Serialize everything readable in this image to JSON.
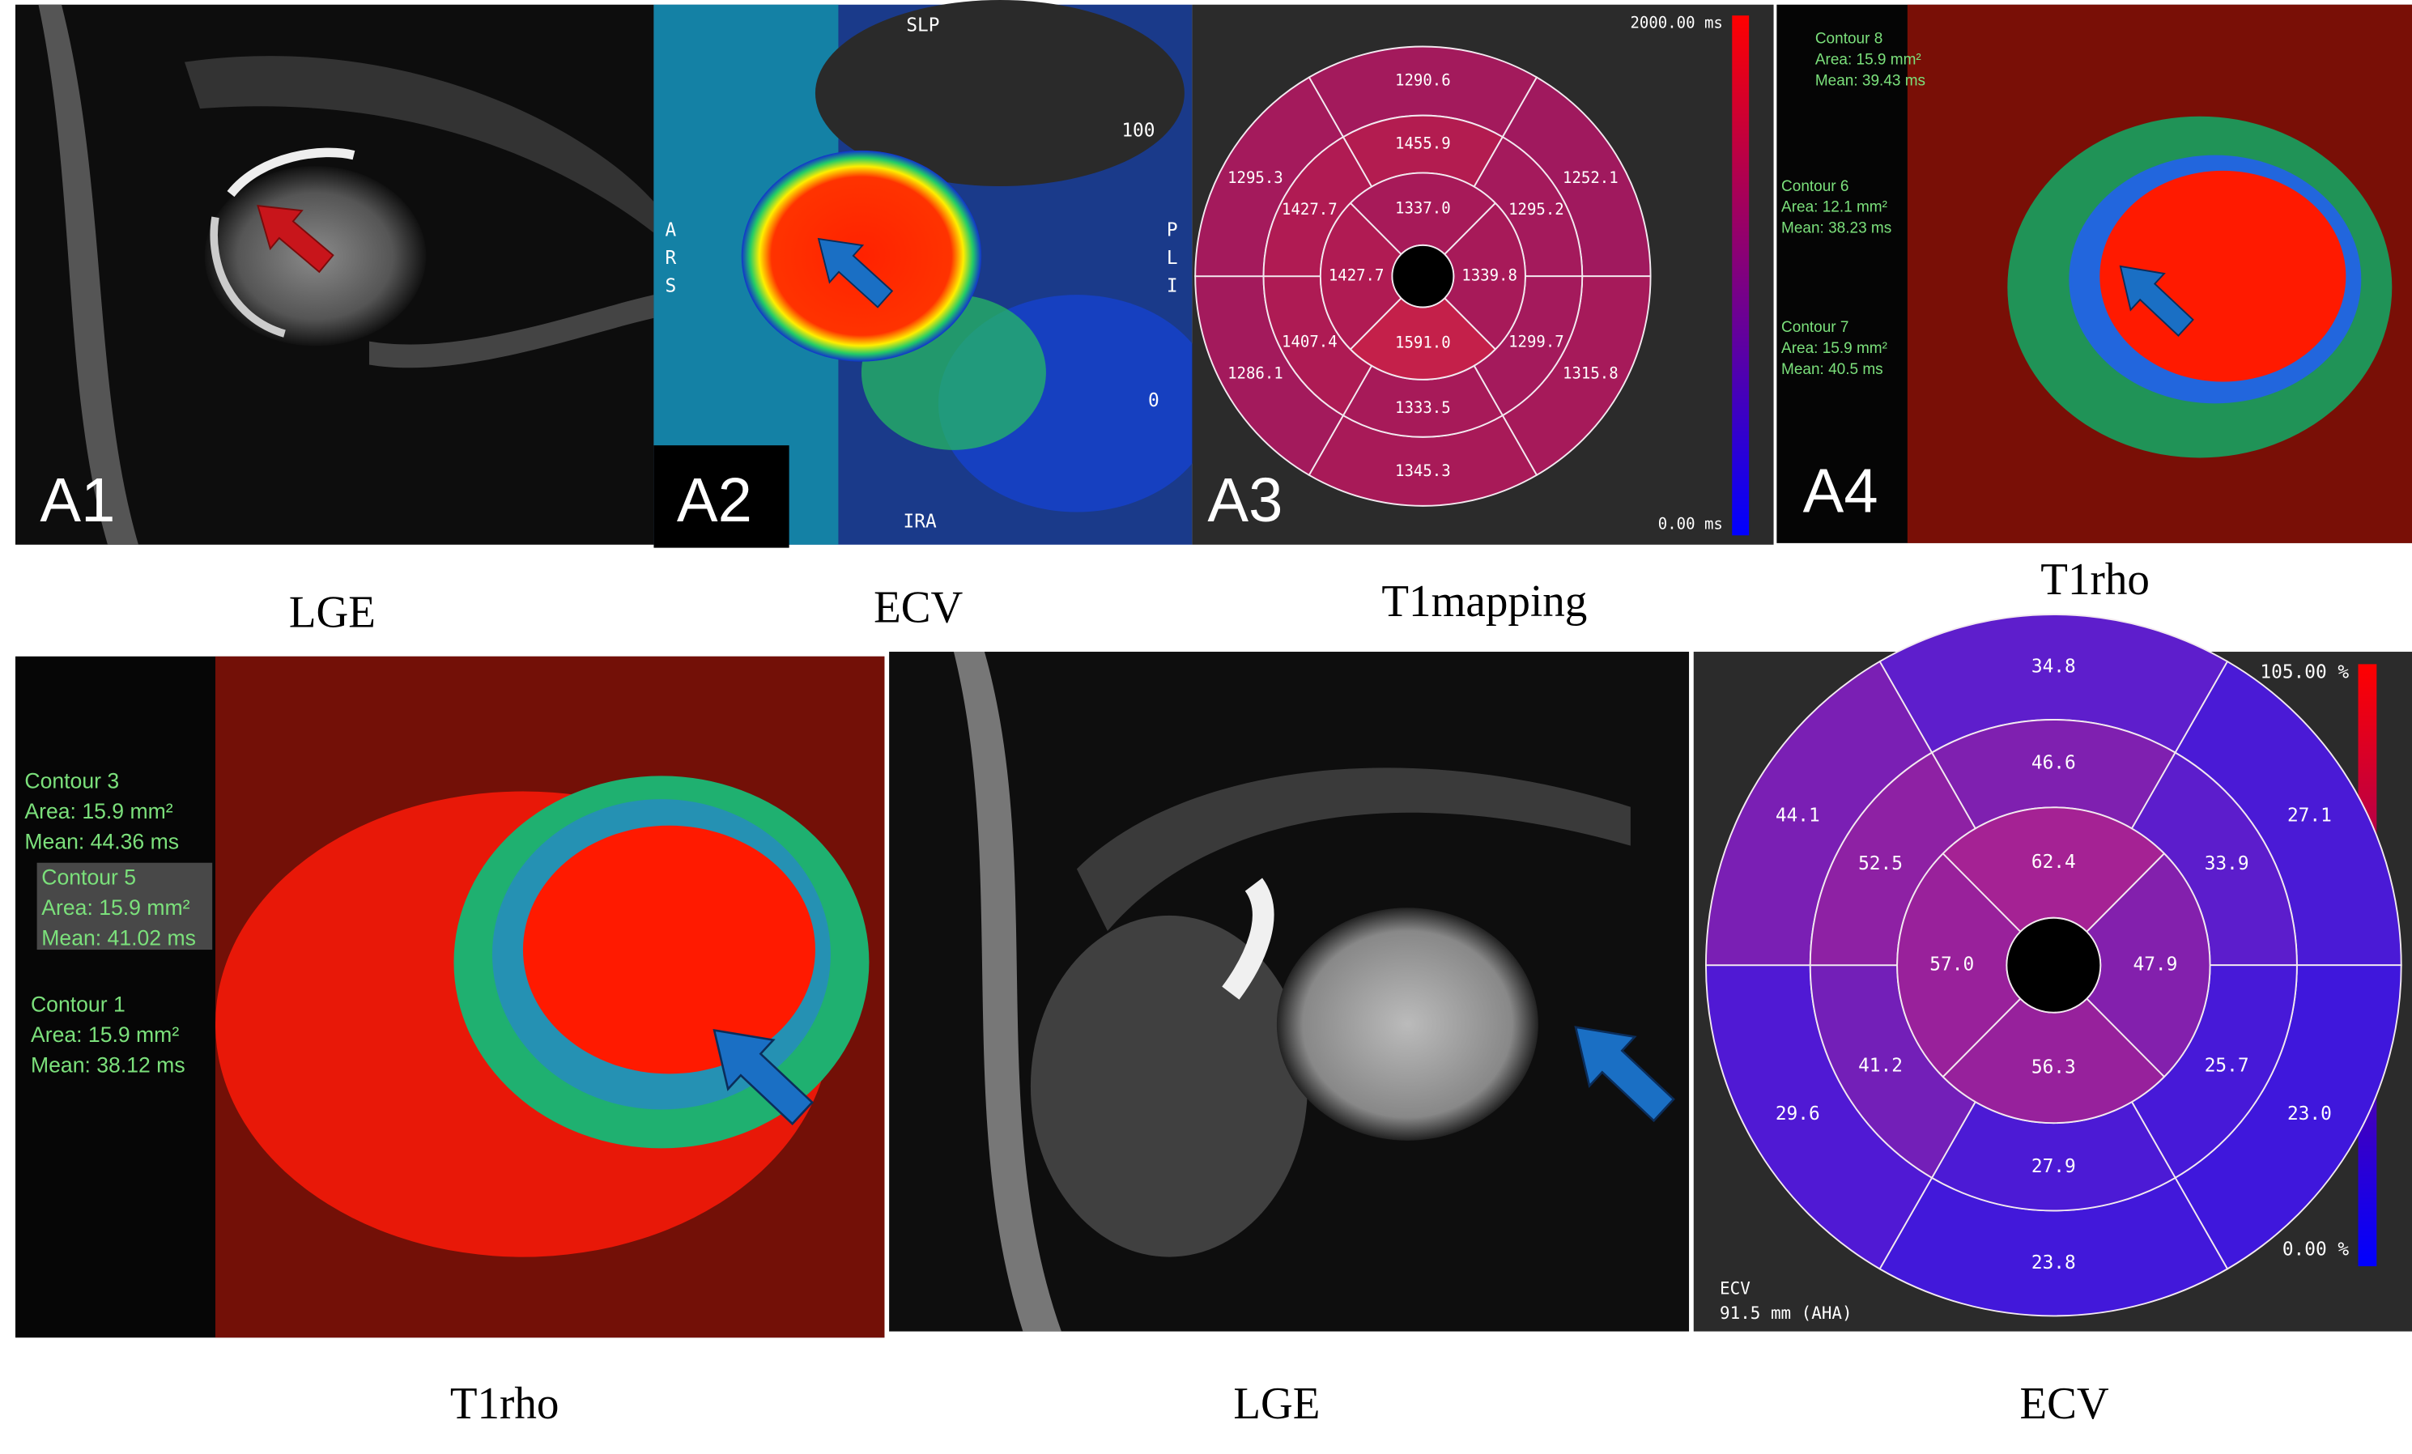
{
  "panels": {
    "a1": {
      "label": "A1"
    },
    "a2": {
      "label": "A2",
      "orientation": [
        "SLP",
        "IRA"
      ],
      "left_letters": [
        "A",
        "R",
        "S"
      ],
      "right_letters": [
        "P",
        "L",
        "I"
      ],
      "scale_top": "100",
      "scale_bottom": "0"
    },
    "a3": {
      "label": "A3"
    },
    "a4": {
      "label": "A4"
    }
  },
  "contours_a4": [
    {
      "name": "Contour 8",
      "area": "Area: 15.9 mm²",
      "mean": "Mean: 39.43 ms"
    },
    {
      "name": "Contour 6",
      "area": "Area: 12.1 mm²",
      "mean": "Mean: 38.23 ms"
    },
    {
      "name": "Contour 7",
      "area": "Area: 15.9 mm²",
      "mean": "Mean: 40.5 ms"
    }
  ],
  "contours_b1": [
    {
      "name": "Contour 3",
      "area": "Area: 15.9 mm²",
      "mean": "Mean: 44.36 ms"
    },
    {
      "name": "Contour 5",
      "area": "Area: 15.9 mm²",
      "mean": "Mean: 41.02 ms"
    },
    {
      "name": "Contour 1",
      "area": "Area: 15.9 mm²",
      "mean": "Mean: 38.12 ms"
    }
  ],
  "captions_top": [
    "LGE",
    "ECV",
    "T1mapping",
    "T1rho"
  ],
  "captions_bottom": [
    "T1rho",
    "LGE",
    "ECV"
  ],
  "bullseye_t1": {
    "scale_max": "2000.00 ms",
    "scale_min": "0.00 ms",
    "outer": [
      {
        "label": "1290.6",
        "color": "#a31a5c"
      },
      {
        "label": "1252.1",
        "color": "#a0195e"
      },
      {
        "label": "1315.8",
        "color": "#a61a5a"
      },
      {
        "label": "1345.3",
        "color": "#a81a58"
      },
      {
        "label": "1286.1",
        "color": "#a31a5c"
      },
      {
        "label": "1295.3",
        "color": "#a41a5c"
      }
    ],
    "middle": [
      {
        "label": "1455.9",
        "color": "#b31c50"
      },
      {
        "label": "1295.2",
        "color": "#a41a5c"
      },
      {
        "label": "1299.7",
        "color": "#a41a5c"
      },
      {
        "label": "1333.5",
        "color": "#a71a59"
      },
      {
        "label": "1407.4",
        "color": "#ae1b54"
      },
      {
        "label": "1427.7",
        "color": "#b01b53"
      }
    ],
    "inner": [
      {
        "label": "1337.0",
        "color": "#a71a59"
      },
      {
        "label": "1339.8",
        "color": "#a71a59"
      },
      {
        "label": "1591.0",
        "color": "#c4204a"
      },
      {
        "label": "1427.7",
        "color": "#b01b53"
      }
    ]
  },
  "bullseye_ecv": {
    "scale_max": "105.00 %",
    "scale_min": "0.00 %",
    "footer": [
      "ECV",
      "91.5 mm (AHA)"
    ],
    "outer": [
      {
        "label": "34.8",
        "color": "#5e1ecc"
      },
      {
        "label": "27.1",
        "color": "#4a1ad6"
      },
      {
        "label": "23.0",
        "color": "#3f17dc"
      },
      {
        "label": "23.8",
        "color": "#4218da"
      },
      {
        "label": "29.6",
        "color": "#5019d4"
      },
      {
        "label": "44.1",
        "color": "#7a1fb4"
      }
    ],
    "middle": [
      {
        "label": "46.6",
        "color": "#7f20b0"
      },
      {
        "label": "33.9",
        "color": "#5c1dcc"
      },
      {
        "label": "25.7",
        "color": "#4719d8"
      },
      {
        "label": "27.9",
        "color": "#4c1ad5"
      },
      {
        "label": "41.2",
        "color": "#731fb8"
      },
      {
        "label": "52.5",
        "color": "#8e21a4"
      }
    ],
    "inner": [
      {
        "label": "62.4",
        "color": "#a52294"
      },
      {
        "label": "47.9",
        "color": "#8320ad"
      },
      {
        "label": "56.3",
        "color": "#97219c"
      },
      {
        "label": "57.0",
        "color": "#99219b"
      }
    ]
  }
}
